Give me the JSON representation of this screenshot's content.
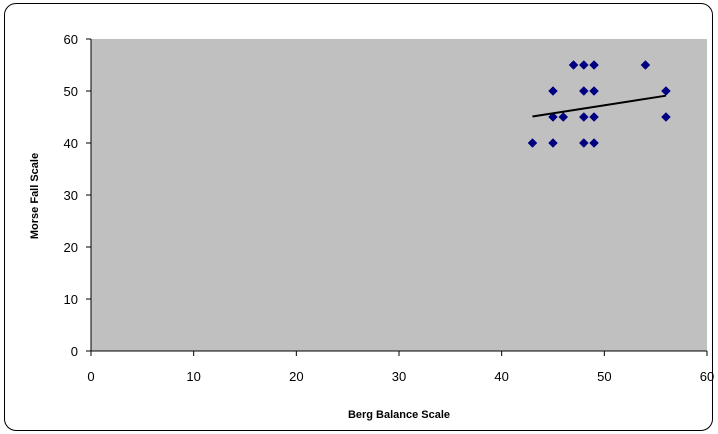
{
  "chart_data": {
    "type": "scatter",
    "title": "",
    "xlabel": "Berg Balance Scale",
    "ylabel": "Morse Fall Scale",
    "xlim": [
      0,
      60
    ],
    "ylim": [
      0,
      60
    ],
    "x_ticks": [
      0,
      10,
      20,
      30,
      40,
      50,
      60
    ],
    "y_ticks": [
      0,
      10,
      20,
      30,
      40,
      50,
      60
    ],
    "grid": false,
    "legend": "none",
    "plot_background": "#c0c0c0",
    "marker_color": "#000080",
    "trendline_color": "#000000",
    "series": [
      {
        "points": [
          [
            43,
            40
          ],
          [
            45,
            50
          ],
          [
            45,
            45
          ],
          [
            45,
            40
          ],
          [
            46,
            45
          ],
          [
            47,
            55
          ],
          [
            48,
            55
          ],
          [
            48,
            50
          ],
          [
            48,
            45
          ],
          [
            48,
            40
          ],
          [
            49,
            55
          ],
          [
            49,
            50
          ],
          [
            49,
            45
          ],
          [
            49,
            40
          ],
          [
            54,
            55
          ],
          [
            56,
            50
          ],
          [
            56,
            45
          ]
        ]
      }
    ],
    "trendline": {
      "type": "linear",
      "x": [
        43,
        56
      ],
      "y": [
        45.1,
        49.1
      ]
    }
  }
}
